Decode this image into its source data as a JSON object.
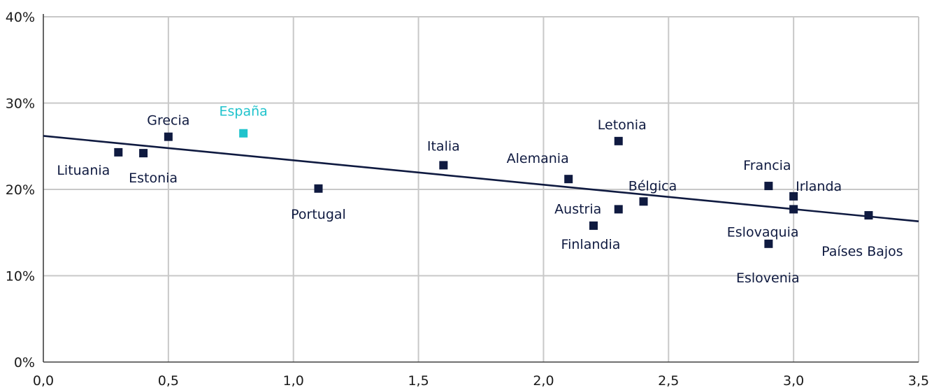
{
  "chart_data": {
    "type": "scatter",
    "title": "",
    "xlabel": "",
    "ylabel": "",
    "xlim": [
      0,
      3.5
    ],
    "ylim": [
      0,
      40
    ],
    "x_ticks": [
      "0,0",
      "0,5",
      "1,0",
      "1,5",
      "2,0",
      "2,5",
      "3,0",
      "3,5"
    ],
    "y_ticks": [
      "0%",
      "10%",
      "20%",
      "30%",
      "40%"
    ],
    "grid": true,
    "colors": {
      "default": "#0f1a40",
      "highlight": "#1fc3cc",
      "trend": "#0f1a40"
    },
    "points": [
      {
        "label": "Lituania",
        "x": 0.3,
        "y": 24.3
      },
      {
        "label": "Estonia",
        "x": 0.4,
        "y": 24.2
      },
      {
        "label": "Grecia",
        "x": 0.5,
        "y": 26.1
      },
      {
        "label": "España",
        "x": 0.8,
        "y": 26.5,
        "highlight": true
      },
      {
        "label": "Portugal",
        "x": 1.1,
        "y": 20.1
      },
      {
        "label": "Italia",
        "x": 1.6,
        "y": 22.8
      },
      {
        "label": "Alemania",
        "x": 2.1,
        "y": 21.2
      },
      {
        "label": "Finlandia",
        "x": 2.2,
        "y": 15.8
      },
      {
        "label": "Letonia",
        "x": 2.3,
        "y": 25.6
      },
      {
        "label": "Austria",
        "x": 2.3,
        "y": 17.7
      },
      {
        "label": "Bélgica",
        "x": 2.4,
        "y": 18.6
      },
      {
        "label": "Eslovenia",
        "x": 2.9,
        "y": 13.7
      },
      {
        "label": "Francia",
        "x": 2.9,
        "y": 20.4
      },
      {
        "label": "Irlanda",
        "x": 3.0,
        "y": 19.2
      },
      {
        "label": "Eslovaquia",
        "x": 3.0,
        "y": 17.7
      },
      {
        "label": "Países Bajos",
        "x": 3.3,
        "y": 17.0
      }
    ],
    "trendline": {
      "x": [
        0,
        3.5
      ],
      "y": [
        26.2,
        16.3
      ]
    }
  }
}
